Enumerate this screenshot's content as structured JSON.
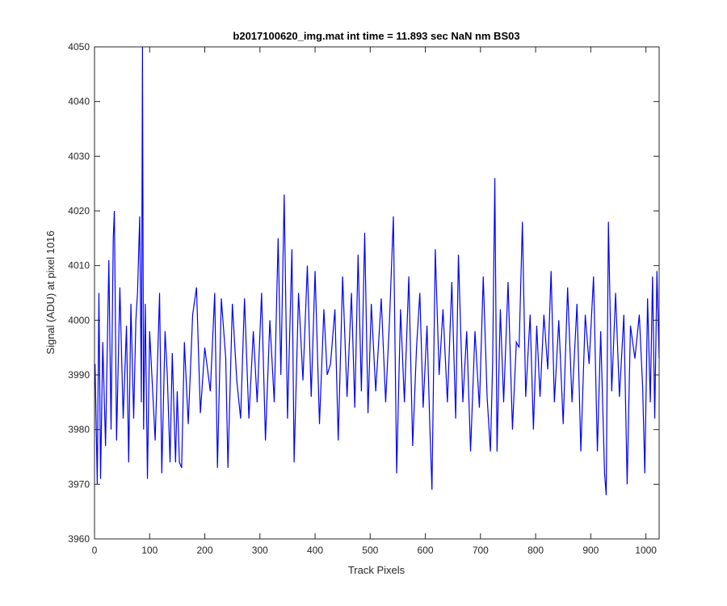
{
  "chart_data": {
    "type": "line",
    "title": "b2017100620_img.mat int time = 11.893 sec  NaN nm BS03",
    "xlabel": "Track Pixels",
    "ylabel": "Signal (ADU) at pixel 1016",
    "xlim": [
      0,
      1024
    ],
    "ylim": [
      3960,
      4050
    ],
    "xticks": [
      0,
      100,
      200,
      300,
      400,
      500,
      600,
      700,
      800,
      900,
      1000
    ],
    "yticks": [
      3960,
      3970,
      3980,
      3990,
      4000,
      4010,
      4020,
      4030,
      4040,
      4050
    ],
    "grid": false,
    "series": [
      {
        "name": "",
        "color": "#0000ff",
        "anchor_points": [
          [
            1,
            3992
          ],
          [
            5,
            3970
          ],
          [
            8,
            4005
          ],
          [
            11,
            3971
          ],
          [
            15,
            3996
          ],
          [
            20,
            3977
          ],
          [
            26,
            4011
          ],
          [
            30,
            3980
          ],
          [
            34,
            4015
          ],
          [
            36,
            4020
          ],
          [
            40,
            3978
          ],
          [
            46,
            4006
          ],
          [
            52,
            3982
          ],
          [
            58,
            3999
          ],
          [
            62,
            3974
          ],
          [
            66,
            4003
          ],
          [
            71,
            3982
          ],
          [
            75,
            4000
          ],
          [
            78,
            4005
          ],
          [
            82,
            4019
          ],
          [
            85,
            3985
          ],
          [
            87,
            4050
          ],
          [
            89,
            3980
          ],
          [
            92,
            4003
          ],
          [
            96,
            3971
          ],
          [
            100,
            3998
          ],
          [
            110,
            3978
          ],
          [
            118,
            4005
          ],
          [
            122,
            3972
          ],
          [
            128,
            3998
          ],
          [
            132,
            3990
          ],
          [
            137,
            3974
          ],
          [
            141,
            3994
          ],
          [
            147,
            3974
          ],
          [
            150,
            3987
          ],
          [
            154,
            3974
          ],
          [
            158,
            3973
          ],
          [
            163,
            3996
          ],
          [
            170,
            3981
          ],
          [
            178,
            4001
          ],
          [
            185,
            4006
          ],
          [
            192,
            3983
          ],
          [
            200,
            3995
          ],
          [
            210,
            3987
          ],
          [
            218,
            4005
          ],
          [
            223,
            3973
          ],
          [
            230,
            4004
          ],
          [
            238,
            3993
          ],
          [
            242,
            3973
          ],
          [
            250,
            4003
          ],
          [
            258,
            3989
          ],
          [
            265,
            3982
          ],
          [
            272,
            4004
          ],
          [
            280,
            3982
          ],
          [
            288,
            3998
          ],
          [
            295,
            3985
          ],
          [
            303,
            4005
          ],
          [
            310,
            3978
          ],
          [
            318,
            4000
          ],
          [
            326,
            3985
          ],
          [
            333,
            4015
          ],
          [
            338,
            3990
          ],
          [
            344,
            4023
          ],
          [
            350,
            3982
          ],
          [
            358,
            4013
          ],
          [
            362,
            3974
          ],
          [
            370,
            4005
          ],
          [
            378,
            3989
          ],
          [
            386,
            4010
          ],
          [
            393,
            3986
          ],
          [
            400,
            4009
          ],
          [
            408,
            3981
          ],
          [
            416,
            4002
          ],
          [
            422,
            3990
          ],
          [
            428,
            3992
          ],
          [
            436,
            4002
          ],
          [
            442,
            3978
          ],
          [
            450,
            4008
          ],
          [
            458,
            3986
          ],
          [
            466,
            4005
          ],
          [
            472,
            3984
          ],
          [
            478,
            4012
          ],
          [
            484,
            3987
          ],
          [
            490,
            4016
          ],
          [
            496,
            3983
          ],
          [
            502,
            4003
          ],
          [
            510,
            3987
          ],
          [
            520,
            4004
          ],
          [
            528,
            3985
          ],
          [
            535,
            4000
          ],
          [
            542,
            4019
          ],
          [
            548,
            3972
          ],
          [
            555,
            4002
          ],
          [
            562,
            3985
          ],
          [
            570,
            4008
          ],
          [
            577,
            3977
          ],
          [
            584,
            3995
          ],
          [
            590,
            4005
          ],
          [
            596,
            3984
          ],
          [
            603,
            3999
          ],
          [
            608,
            3981
          ],
          [
            612,
            3969
          ],
          [
            618,
            4013
          ],
          [
            625,
            3990
          ],
          [
            632,
            4002
          ],
          [
            640,
            3985
          ],
          [
            648,
            4007
          ],
          [
            655,
            3982
          ],
          [
            660,
            4012
          ],
          [
            668,
            3985
          ],
          [
            675,
            3998
          ],
          [
            682,
            3976
          ],
          [
            690,
            3998
          ],
          [
            698,
            3984
          ],
          [
            705,
            4008
          ],
          [
            712,
            3986
          ],
          [
            718,
            3976
          ],
          [
            722,
            3992
          ],
          [
            726,
            4026
          ],
          [
            730,
            3976
          ],
          [
            736,
            4002
          ],
          [
            742,
            3985
          ],
          [
            750,
            4007
          ],
          [
            758,
            3980
          ],
          [
            765,
            3996
          ],
          [
            770,
            3995
          ],
          [
            776,
            4018
          ],
          [
            782,
            3986
          ],
          [
            790,
            4001
          ],
          [
            796,
            3980
          ],
          [
            802,
            3999
          ],
          [
            808,
            3986
          ],
          [
            815,
            4001
          ],
          [
            822,
            3991
          ],
          [
            828,
            4009
          ],
          [
            834,
            3985
          ],
          [
            842,
            4000
          ],
          [
            850,
            3981
          ],
          [
            858,
            4006
          ],
          [
            866,
            3985
          ],
          [
            875,
            4003
          ],
          [
            882,
            3976
          ],
          [
            890,
            4001
          ],
          [
            897,
            3992
          ],
          [
            905,
            4008
          ],
          [
            912,
            3976
          ],
          [
            918,
            3998
          ],
          [
            925,
            3972
          ],
          [
            928,
            3968
          ],
          [
            932,
            4018
          ],
          [
            938,
            3987
          ],
          [
            945,
            4005
          ],
          [
            952,
            3986
          ],
          [
            960,
            4001
          ],
          [
            966,
            3970
          ],
          [
            972,
            3999
          ],
          [
            980,
            3993
          ],
          [
            988,
            4001
          ],
          [
            994,
            3988
          ],
          [
            998,
            3972
          ],
          [
            1003,
            4004
          ],
          [
            1008,
            3985
          ],
          [
            1012,
            4008
          ],
          [
            1016,
            3982
          ],
          [
            1020,
            4009
          ],
          [
            1024,
            3993
          ]
        ]
      }
    ]
  }
}
